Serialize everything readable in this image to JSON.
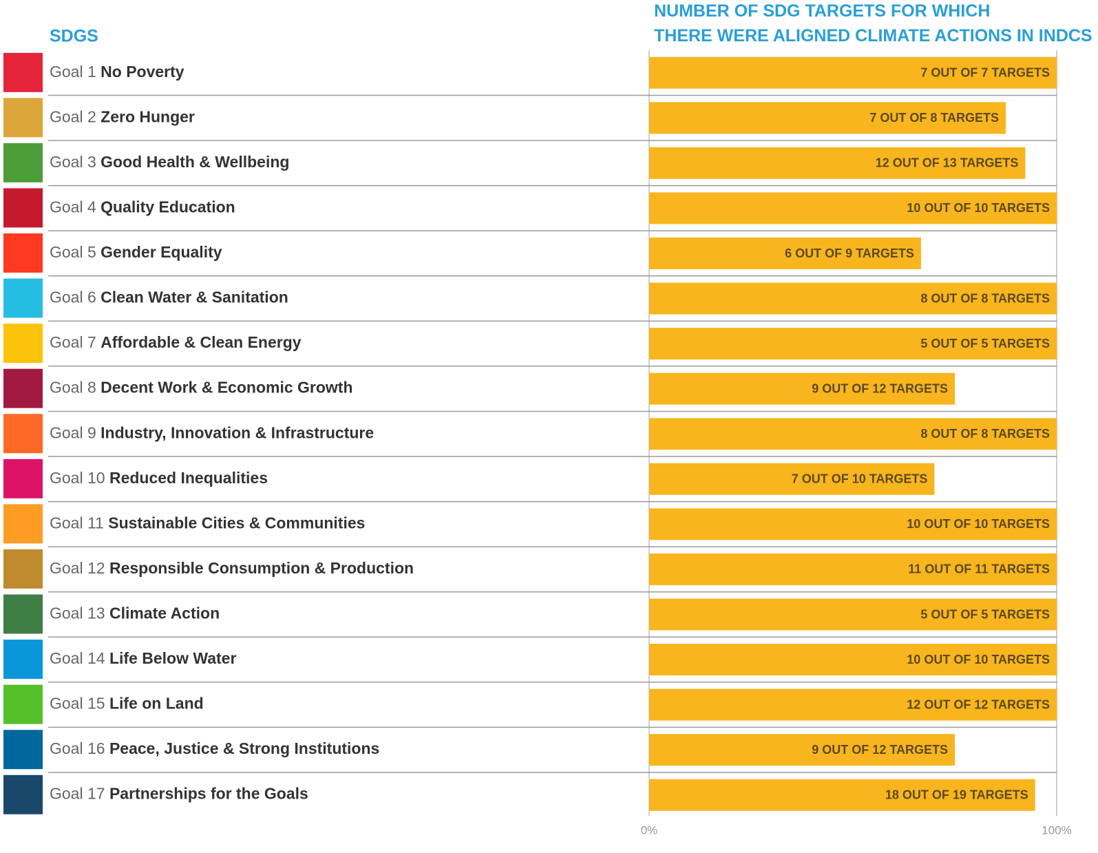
{
  "chart_data": {
    "type": "bar",
    "orientation": "horizontal",
    "category_header": "SDGS",
    "title": "NUMBER OF SDG TARGETS FOR WHICH THERE WERE ALIGNED CLIMATE ACTIONS IN INDCS",
    "goal_numbers": [
      "Goal 1",
      "Goal 2",
      "Goal 3",
      "Goal 4",
      "Goal 5",
      "Goal 6",
      "Goal 7",
      "Goal 8",
      "Goal 9",
      "Goal 10",
      "Goal 11",
      "Goal 12",
      "Goal 13",
      "Goal 14",
      "Goal 15",
      "Goal 16",
      "Goal 17"
    ],
    "categories": [
      "No Poverty",
      "Zero Hunger",
      "Good Health & Wellbeing",
      "Quality Education",
      "Gender Equality",
      "Clean Water & Sanitation",
      "Affordable & Clean Energy",
      "Decent Work & Economic Growth",
      "Industry, Innovation & Infrastructure",
      "Reduced Inequalities",
      "Sustainable Cities & Communities",
      "Responsible Consumption & Production",
      "Climate Action",
      "Life Below Water",
      "Life on Land",
      "Peace, Justice & Strong Institutions",
      "Partnerships for the Goals"
    ],
    "icon_colors": [
      "#e5243b",
      "#dda63a",
      "#4c9f38",
      "#c5192d",
      "#ff3a21",
      "#26bde2",
      "#fcc30b",
      "#a21942",
      "#fd6925",
      "#dd1367",
      "#fd9d24",
      "#bf8b2e",
      "#3f7e44",
      "#0a97d9",
      "#56c02b",
      "#00689d",
      "#19486a"
    ],
    "values": [
      100,
      87.5,
      92.3,
      100,
      66.7,
      100,
      100,
      75,
      100,
      70,
      100,
      100,
      100,
      100,
      100,
      75,
      94.7
    ],
    "value_labels": [
      "7 OUT OF 7 TARGETS",
      "7 OUT OF 8 TARGETS",
      "12 OUT OF 13 TARGETS",
      "10 OUT OF 10 TARGETS",
      "6 OUT OF 9 TARGETS",
      "8 OUT OF 8 TARGETS",
      "5 OUT OF 5 TARGETS",
      "9 OUT OF 12 TARGETS",
      "8 OUT OF 8 TARGETS",
      "7 OUT OF 10 TARGETS",
      "10 OUT OF 10 TARGETS",
      "11 OUT OF 11 TARGETS",
      "5 OUT OF 5 TARGETS",
      "10 OUT OF 10 TARGETS",
      "12 OUT OF 12 TARGETS",
      "9 OUT OF 12 TARGETS",
      "18 OUT OF 19 TARGETS"
    ],
    "color": "#f9b51d",
    "xlim": [
      0,
      100
    ],
    "xticks": [
      {
        "value": 0,
        "label": "0%"
      },
      {
        "value": 100,
        "label": "100%"
      }
    ]
  }
}
